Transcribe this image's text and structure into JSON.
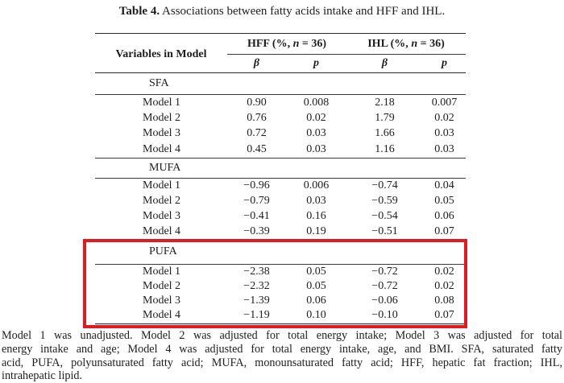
{
  "title": {
    "bold": "Table 4.",
    "rest": "Associations between fatty acids intake and HFF and IHL."
  },
  "table": {
    "row_header": "Variables in Model",
    "groups": [
      {
        "pre": "HFF (%, ",
        "n": "n",
        "post": " = 36)"
      },
      {
        "pre": "IHL (%, ",
        "n": "n",
        "post": " = 36)"
      }
    ],
    "subcols": {
      "beta": "β",
      "p": "p"
    },
    "sections": [
      {
        "name": "SFA",
        "rows": [
          {
            "label": "Model 1",
            "cells": [
              "0.90",
              "0.008",
              "2.18",
              "0.007"
            ]
          },
          {
            "label": "Model 2",
            "cells": [
              "0.76",
              "0.02",
              "1.79",
              "0.02"
            ]
          },
          {
            "label": "Model 3",
            "cells": [
              "0.72",
              "0.03",
              "1.66",
              "0.03"
            ]
          },
          {
            "label": "Model 4",
            "cells": [
              "0.45",
              "0.03",
              "1.16",
              "0.03"
            ]
          }
        ]
      },
      {
        "name": "MUFA",
        "rows": [
          {
            "label": "Model 1",
            "cells": [
              "−0.96",
              "0.006",
              "−0.74",
              "0.04"
            ]
          },
          {
            "label": "Model 2",
            "cells": [
              "−0.79",
              "0.03",
              "−0.59",
              "0.05"
            ]
          },
          {
            "label": "Model 3",
            "cells": [
              "−0.41",
              "0.16",
              "−0.54",
              "0.06"
            ]
          },
          {
            "label": "Model 4",
            "cells": [
              "−0.39",
              "0.19",
              "−0.51",
              "0.07"
            ]
          }
        ]
      },
      {
        "name": "PUFA",
        "highlighted": true,
        "rows": [
          {
            "label": "Model 1",
            "cells": [
              "−2.38",
              "0.05",
              "−0.72",
              "0.02"
            ]
          },
          {
            "label": "Model 2",
            "cells": [
              "−2.32",
              "0.05",
              "−0.72",
              "0.02"
            ]
          },
          {
            "label": "Model 3",
            "cells": [
              "−1.39",
              "0.06",
              "−0.06",
              "0.08"
            ]
          },
          {
            "label": "Model 4",
            "cells": [
              "−1.19",
              "0.10",
              "−0.10",
              "0.07"
            ]
          }
        ]
      }
    ]
  },
  "highlight": {
    "color": "#e01b20"
  },
  "footnote": {
    "lines": [
      "Model 1 was unadjusted. Model 2 was adjusted for total energy intake; Model 3 was adjusted for total",
      "energy intake and age; Model 4 was adjusted for total energy intake, age, and BMI. SFA, saturated fatty",
      "acid, PUFA, polyunsaturated fatty acid; MUFA, monounsaturated fatty acid; HFF, hepatic fat fraction; IHL,",
      "intrahepatic lipid."
    ]
  }
}
